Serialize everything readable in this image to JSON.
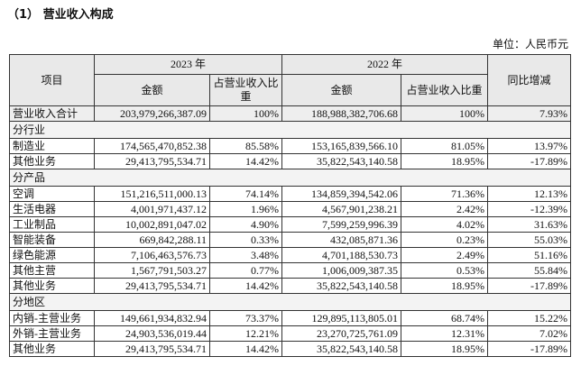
{
  "title": "（1） 营业收入构成",
  "unit": "单位：人民币元",
  "table": {
    "header": {
      "item": "项目",
      "year_2023": "2023 年",
      "year_2022": "2022 年",
      "amount_2023": "金额",
      "share_2023": "占营业收入比重",
      "amount_2022": "金额",
      "share_2022": "占营业收入比重",
      "yoy": "同比增减"
    },
    "rows": [
      [
        "营业收入合计",
        "203,979,266,387.09",
        "100%",
        "188,988,382,706.68",
        "100%",
        "7.93%"
      ],
      [
        "分行业"
      ],
      [
        "制造业",
        "174,565,470,852.38",
        "85.58%",
        "153,165,839,566.10",
        "81.05%",
        "13.97%"
      ],
      [
        "其他业务",
        "29,413,795,534.71",
        "14.42%",
        "35,822,543,140.58",
        "18.95%",
        "-17.89%"
      ],
      [
        "分产品"
      ],
      [
        "空调",
        "151,216,511,000.13",
        "74.14%",
        "134,859,394,542.06",
        "71.36%",
        "12.13%"
      ],
      [
        "生活电器",
        "4,001,971,437.12",
        "1.96%",
        "4,567,901,238.21",
        "2.42%",
        "-12.39%"
      ],
      [
        "工业制品",
        "10,002,891,047.02",
        "4.90%",
        "7,599,259,996.39",
        "4.02%",
        "31.63%"
      ],
      [
        "智能装备",
        "669,842,288.11",
        "0.33%",
        "432,085,871.36",
        "0.23%",
        "55.03%"
      ],
      [
        "绿色能源",
        "7,106,463,576.73",
        "3.48%",
        "4,701,188,530.73",
        "2.49%",
        "51.16%"
      ],
      [
        "其他主营",
        "1,567,791,503.27",
        "0.77%",
        "1,006,009,387.35",
        "0.53%",
        "55.84%"
      ],
      [
        "其他业务",
        "29,413,795,534.71",
        "14.42%",
        "35,822,543,140.58",
        "18.95%",
        "-17.89%"
      ],
      [
        "分地区"
      ],
      [
        "内销-主营业务",
        "149,661,934,832.94",
        "73.37%",
        "129,895,113,805.01",
        "68.74%",
        "15.22%"
      ],
      [
        "外销-主营业务",
        "24,903,536,019.44",
        "12.21%",
        "23,270,725,761.09",
        "12.31%",
        "7.02%"
      ],
      [
        "其他业务",
        "29,413,795,534.71",
        "14.42%",
        "35,822,543,140.58",
        "18.95%",
        "-17.89%"
      ]
    ]
  }
}
